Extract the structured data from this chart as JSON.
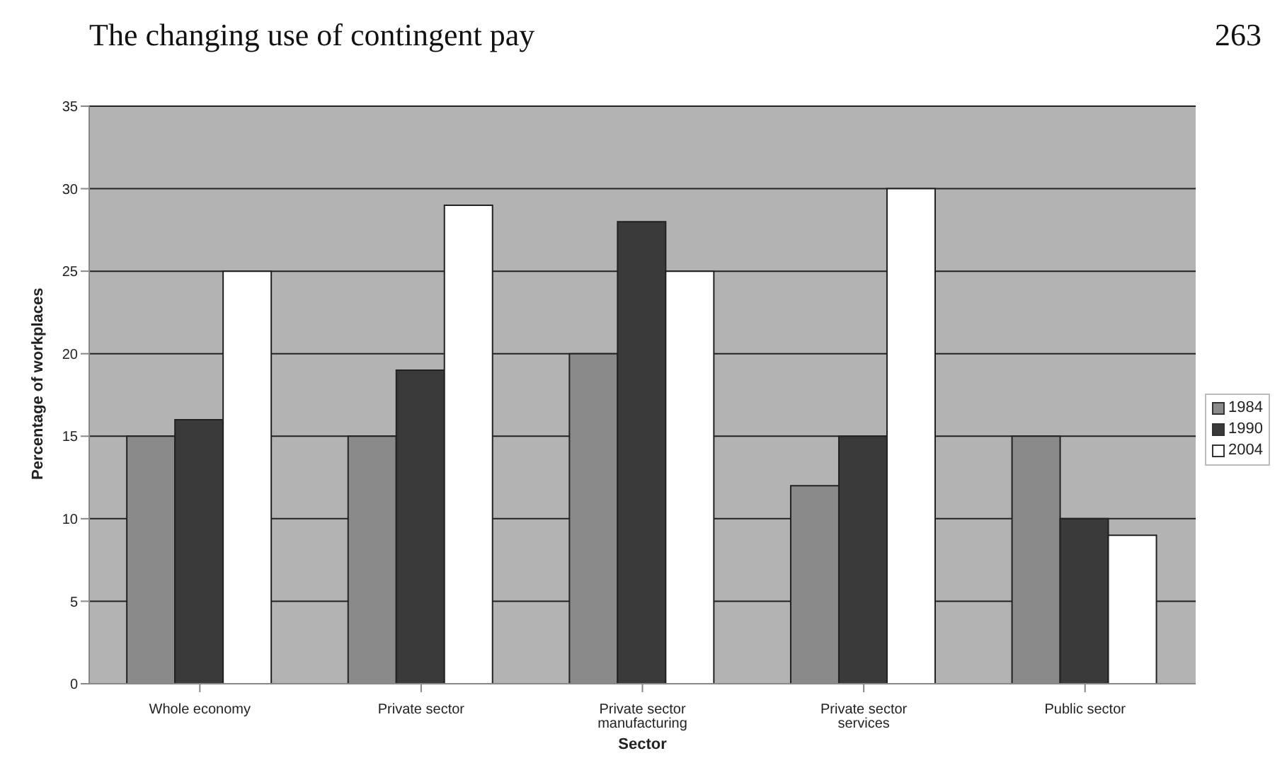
{
  "chart_data": {
    "type": "bar",
    "title": "The changing use of contingent pay",
    "annotations": [
      "263"
    ],
    "xlabel": "Sector",
    "ylabel": "Percentage of workplaces",
    "categories": [
      "Whole economy",
      "Private sector",
      "Private sector manufacturing",
      "Private sector services",
      "Public sector"
    ],
    "series": [
      {
        "name": "1984",
        "color": "#8a8a8a",
        "values": [
          15,
          15,
          20,
          12,
          15
        ]
      },
      {
        "name": "1990",
        "color": "#3a3a3a",
        "values": [
          16,
          19,
          28,
          15,
          10
        ]
      },
      {
        "name": "2004",
        "color": "#ffffff",
        "values": [
          25,
          29,
          25,
          30,
          9
        ]
      }
    ],
    "ylim": [
      0,
      35
    ],
    "yticks": [
      0,
      5,
      10,
      15,
      20,
      25,
      30,
      35
    ],
    "grid": "y",
    "legend": "right"
  }
}
